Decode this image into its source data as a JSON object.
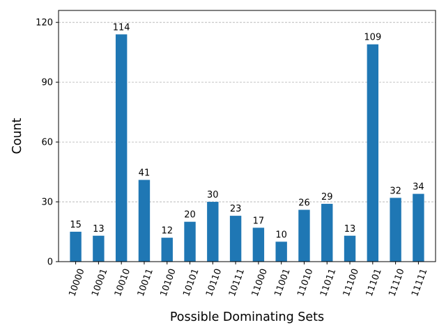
{
  "chart_data": {
    "type": "bar",
    "title": "",
    "xlabel": "Possible Dominating Sets",
    "ylabel": "Count",
    "categories": [
      "10000",
      "10001",
      "10010",
      "10011",
      "10100",
      "10101",
      "10110",
      "10111",
      "11000",
      "11001",
      "11010",
      "11011",
      "11100",
      "11101",
      "11110",
      "11111"
    ],
    "values": [
      15,
      13,
      114,
      41,
      12,
      20,
      30,
      23,
      17,
      10,
      26,
      29,
      13,
      109,
      32,
      34
    ],
    "ylim": [
      0,
      126
    ],
    "yticks": [
      0,
      30,
      60,
      90,
      120
    ],
    "grid": "y-dashed",
    "bar_color": "#1f77b4",
    "data_labels": true,
    "xtick_rotation": 70
  }
}
